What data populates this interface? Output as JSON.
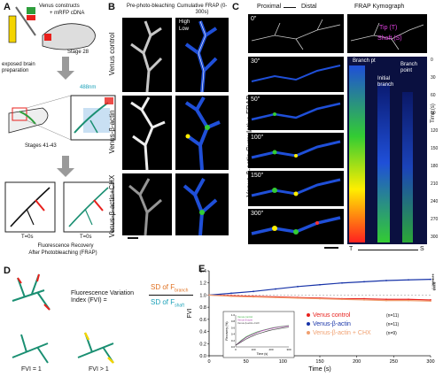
{
  "panels": {
    "A": {
      "letter": "A",
      "constructs": "Venus constructs",
      "mrfp": "+ mRFP cDNA",
      "stage_early": "Stage 28",
      "exposed": "exposed brain preparation",
      "laser": "488nm",
      "stage_late": "Stages 41-43",
      "t0": "T=0s",
      "tx": "T=0s",
      "frap1": "Fluorescence Recovery",
      "frap2": "After Photobleaching (FRAP)"
    },
    "B": {
      "letter": "B",
      "col1": "Pre-photo-bleaching",
      "col2": "Cumulative FRAP (0-300s)",
      "legend_high": "High",
      "legend_low": "Low",
      "rows": [
        "Venus control",
        "Venus-β-actin",
        "Venus-β-actin+CHX"
      ]
    },
    "C": {
      "letter": "C",
      "proximal": "Proximal",
      "distal": "Distal",
      "kymo_title": "FRAP Kymograph",
      "side_label": "Venus-β-actin Cumulative FRAP",
      "times": [
        "0\"",
        "30\"",
        "50\"",
        "100\"",
        "150\"",
        "300\""
      ],
      "tip": "Tip (T)",
      "shaft": "Shaft (S)",
      "branch_pt": "Branch pt",
      "initial_branch": "Initial branch",
      "branch_point": "Branch point",
      "time_axis": "Time (s)",
      "time_ticks": [
        "0",
        "30",
        "60",
        "90",
        "120",
        "150",
        "180",
        "210",
        "240",
        "270",
        "300"
      ],
      "bottom_t": "T",
      "bottom_s": "S"
    },
    "D": {
      "letter": "D",
      "fvi_label": "Fluorescence Variation Index (FVI) =",
      "numerator": "SD of F",
      "numerator_sub": "branch",
      "denominator": "SD of F",
      "denominator_sub": "shaft",
      "fvi1": "FVI = 1",
      "fvi2": "FVI > 1"
    },
    "E": {
      "letter": "E",
      "significance": [
        "***",
        "***",
        "###"
      ],
      "inset_legend": [
        "Venus control",
        "Venus-β-actin",
        "Venus-β-actin+CHX"
      ]
    }
  },
  "chart_data": {
    "type": "line",
    "title": "",
    "xlabel": "Time (s)",
    "ylabel": "FVI",
    "xlim": [
      0,
      300
    ],
    "ylim": [
      0,
      1.4
    ],
    "x_ticks": [
      0,
      50,
      100,
      150,
      200,
      250,
      300
    ],
    "y_ticks": [
      0,
      0.2,
      0.4,
      0.6,
      0.8,
      1.0,
      1.2,
      1.4
    ],
    "x": [
      0,
      30,
      60,
      90,
      120,
      150,
      180,
      210,
      240,
      270,
      300
    ],
    "series": [
      {
        "name": "Venus control",
        "n": "(n=11)",
        "color": "#e8201c",
        "values": [
          1.0,
          0.99,
          0.98,
          0.97,
          0.96,
          0.95,
          0.94,
          0.94,
          0.93,
          0.93,
          0.92
        ]
      },
      {
        "name": "Venus-β-actin",
        "n": "(n=11)",
        "color": "#1733a8",
        "values": [
          1.0,
          1.03,
          1.06,
          1.1,
          1.14,
          1.17,
          1.2,
          1.22,
          1.24,
          1.25,
          1.26
        ]
      },
      {
        "name": "Venus-β-actin + CHX",
        "n": "(n=9)",
        "color": "#f0a070",
        "values": [
          1.0,
          0.98,
          0.97,
          0.96,
          0.95,
          0.94,
          0.93,
          0.92,
          0.91,
          0.91,
          0.9
        ]
      }
    ],
    "inset": {
      "xlabel": "Time (s)",
      "ylabel": "Recovery (%)",
      "x_ticks": [
        0,
        100,
        200,
        300
      ],
      "y_ticks": [
        0,
        0.2,
        0.4,
        0.6,
        0.8,
        1.0
      ],
      "ylim": [
        0,
        1.0
      ],
      "x": [
        0,
        30,
        60,
        90,
        120,
        150,
        180,
        210,
        240,
        270,
        300
      ],
      "series": [
        {
          "name": "Venus control",
          "color": "#3cb043",
          "values": [
            0.05,
            0.2,
            0.32,
            0.4,
            0.47,
            0.52,
            0.56,
            0.6,
            0.63,
            0.65,
            0.67
          ]
        },
        {
          "name": "Venus-β-actin",
          "color": "#b03cb0",
          "values": [
            0.05,
            0.18,
            0.3,
            0.38,
            0.45,
            0.51,
            0.55,
            0.59,
            0.62,
            0.64,
            0.66
          ]
        },
        {
          "name": "Venus-β-actin+CHX",
          "color": "#444444",
          "values": [
            0.05,
            0.15,
            0.25,
            0.33,
            0.4,
            0.45,
            0.5,
            0.54,
            0.57,
            0.6,
            0.62
          ]
        }
      ]
    }
  }
}
